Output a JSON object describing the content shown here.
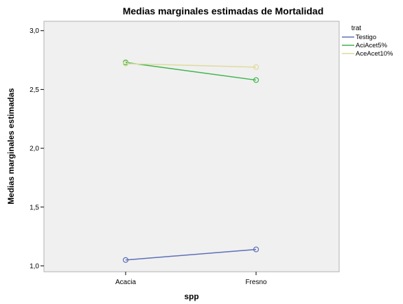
{
  "chart_data": {
    "type": "line",
    "title": "Medias marginales estimadas de Mortalidad",
    "xlabel": "spp",
    "ylabel": "Medias marginales estimadas",
    "categories": [
      "Acacia",
      "Fresno"
    ],
    "ylim": [
      0.95,
      3.08
    ],
    "yticks": [
      1.0,
      1.5,
      2.0,
      2.5,
      3.0
    ],
    "ytick_labels": [
      "1,0",
      "1,5",
      "2,0",
      "2,5",
      "3,0"
    ],
    "grid": false,
    "legend": {
      "title": "trat",
      "placement": "right"
    },
    "series": [
      {
        "name": "Testigo",
        "values": [
          1.05,
          1.14
        ],
        "color": "#5b6fb7"
      },
      {
        "name": "AciAcet5%",
        "values": [
          2.73,
          2.58
        ],
        "color": "#3cb44b"
      },
      {
        "name": "AceAcet10%",
        "values": [
          2.72,
          2.69
        ],
        "color": "#dedb9b"
      }
    ],
    "plot_background": "#f0f0f0"
  }
}
